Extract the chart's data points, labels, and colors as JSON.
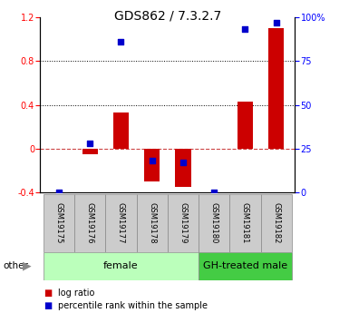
{
  "title": "GDS862 / 7.3.2.7",
  "samples": [
    "GSM19175",
    "GSM19176",
    "GSM19177",
    "GSM19178",
    "GSM19179",
    "GSM19180",
    "GSM19181",
    "GSM19182"
  ],
  "log_ratio": [
    0.0,
    -0.05,
    0.33,
    -0.3,
    -0.35,
    0.0,
    0.43,
    1.1
  ],
  "percentile_rank": [
    0.0,
    28.0,
    86.0,
    18.0,
    17.0,
    0.0,
    93.0,
    97.0
  ],
  "bar_color": "#cc0000",
  "dot_color": "#0000cc",
  "ylim_left": [
    -0.4,
    1.2
  ],
  "ylim_right": [
    0,
    100
  ],
  "yticks_left": [
    -0.4,
    0.0,
    0.4,
    0.8,
    1.2
  ],
  "ytick_labels_left": [
    "-0.4",
    "0",
    "0.4",
    "0.8",
    "1.2"
  ],
  "yticks_right": [
    0,
    25,
    50,
    75,
    100
  ],
  "ytick_labels_right": [
    "0",
    "25",
    "50",
    "75",
    "100%"
  ],
  "hline_dotted": [
    0.4,
    0.8
  ],
  "hline_dashed": 0.0,
  "female_samples": 5,
  "gh_samples": 3,
  "female_color": "#bbffbb",
  "gh_color": "#44cc44",
  "other_label": "other",
  "legend_log_ratio": "log ratio",
  "legend_percentile": "percentile rank within the sample",
  "bar_width": 0.5,
  "dot_size": 25,
  "bg_color": "#ffffff",
  "title_fontsize": 10,
  "tick_fontsize": 7,
  "group_fontsize": 8,
  "legend_fontsize": 7
}
